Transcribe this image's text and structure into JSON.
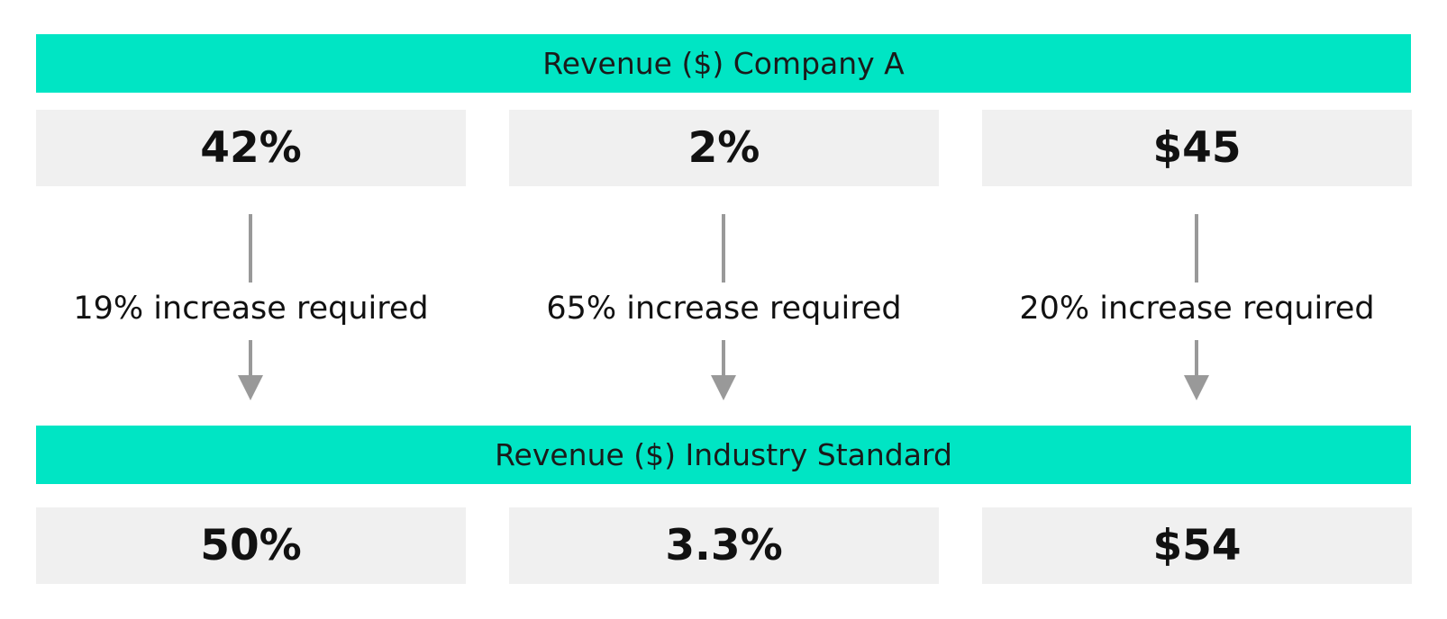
{
  "colors": {
    "banner_fill": "#00e5c4",
    "box_fill": "#f0f0f0",
    "arrow": "#999999"
  },
  "top_banner": {
    "label": "Revenue ($) Company A"
  },
  "bottom_banner": {
    "label": "Revenue ($) Industry Standard"
  },
  "company_values": [
    "42%",
    "2%",
    "$45"
  ],
  "connectors": [
    {
      "label": "19% increase required",
      "icon": "down-arrow-icon"
    },
    {
      "label": "65% increase required",
      "icon": "down-arrow-icon"
    },
    {
      "label": "20% increase required",
      "icon": "down-arrow-icon"
    }
  ],
  "industry_values": [
    "50%",
    "3.3%",
    "$54"
  ]
}
